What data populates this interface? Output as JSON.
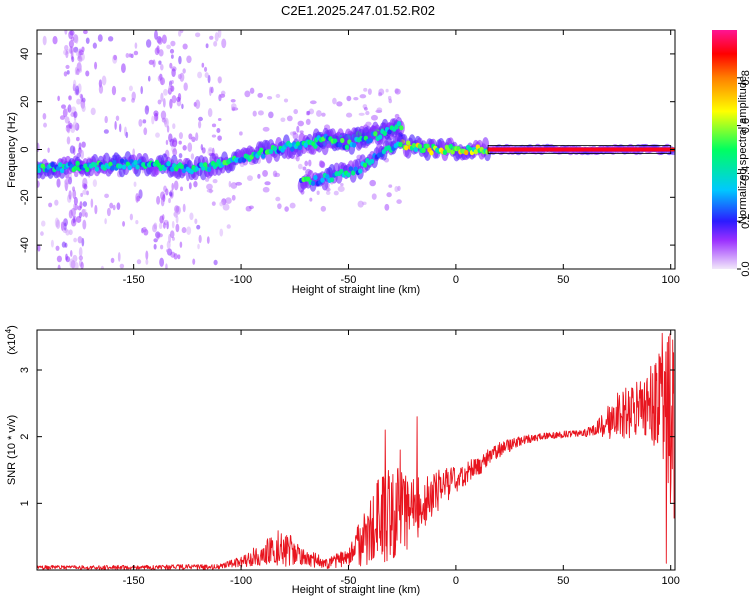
{
  "title": "C2E1.2025.247.01.52.R02",
  "chart_data": [
    {
      "type": "heatmap",
      "name": "spectrogram",
      "xlabel": "Height of straight line (km)",
      "ylabel": "Frequency (Hz)",
      "xlim": [
        -195,
        102
      ],
      "ylim": [
        -50,
        50
      ],
      "xticks": [
        -150,
        -100,
        -50,
        0,
        50,
        100
      ],
      "yticks": [
        -40,
        -20,
        0,
        20,
        40
      ],
      "colorbar": {
        "label": "Normalized spectral amplitude",
        "range": [
          0,
          1
        ],
        "ticks": [
          0.0,
          0.2,
          0.4,
          0.6,
          0.8
        ],
        "tick_labels": [
          "0.0",
          "0.2",
          "0.4",
          "0.6",
          "0.8"
        ],
        "stops": [
          {
            "v": 0.0,
            "color": "#f2e8fa"
          },
          {
            "v": 0.12,
            "color": "#9b30ff"
          },
          {
            "v": 0.2,
            "color": "#2b1bff"
          },
          {
            "v": 0.33,
            "color": "#00c8ff"
          },
          {
            "v": 0.5,
            "color": "#00ff60"
          },
          {
            "v": 0.66,
            "color": "#ffff00"
          },
          {
            "v": 0.8,
            "color": "#ff8000"
          },
          {
            "v": 0.9,
            "color": "#ff0000"
          },
          {
            "v": 1.0,
            "color": "#ff1493"
          }
        ]
      },
      "tracks": [
        {
          "name": "main-tone",
          "points": [
            [
              -195,
              -8
            ],
            [
              -150,
              -6
            ],
            [
              -120,
              -8
            ],
            [
              -100,
              -4
            ],
            [
              -80,
              1
            ],
            [
              -60,
              3
            ],
            [
              -40,
              6
            ],
            [
              -30,
              8
            ],
            [
              -27,
              10
            ],
            [
              -25,
              2
            ],
            [
              -15,
              0
            ],
            [
              0,
              0
            ],
            [
              15,
              0
            ],
            [
              60,
              0
            ],
            [
              100,
              0
            ],
            [
              102,
              0
            ]
          ]
        },
        {
          "name": "secondary-tone",
          "points": [
            [
              -72,
              -14
            ],
            [
              -60,
              -12
            ],
            [
              -45,
              -8
            ],
            [
              -35,
              -2
            ],
            [
              -27,
              3
            ],
            [
              -25,
              3
            ]
          ]
        },
        {
          "name": "tertiary-tone",
          "points": [
            [
              -65,
              5
            ],
            [
              -50,
              2
            ],
            [
              -40,
              5
            ],
            [
              -30,
              8
            ],
            [
              -25,
              10
            ]
          ]
        }
      ]
    },
    {
      "type": "line",
      "name": "snr",
      "xlabel": "Height of straight line (km)",
      "ylabel": "SNR (10 * v/v)",
      "multiplier": "(x10^4)",
      "multiplier_base": "(x10",
      "multiplier_exp": "4",
      "multiplier_close": ")",
      "xlim": [
        -195,
        102
      ],
      "ylim": [
        0,
        3.6
      ],
      "xticks": [
        -150,
        -100,
        -50,
        0,
        50,
        100
      ],
      "yticks": [
        1,
        2,
        3
      ],
      "color": "#e8141e",
      "envelope": [
        {
          "x": -195,
          "mean": 0.04,
          "amp": 0.03
        },
        {
          "x": -150,
          "mean": 0.04,
          "amp": 0.03
        },
        {
          "x": -110,
          "mean": 0.05,
          "amp": 0.04
        },
        {
          "x": -100,
          "mean": 0.12,
          "amp": 0.08
        },
        {
          "x": -90,
          "mean": 0.25,
          "amp": 0.18
        },
        {
          "x": -80,
          "mean": 0.35,
          "amp": 0.3
        },
        {
          "x": -72,
          "mean": 0.2,
          "amp": 0.15
        },
        {
          "x": -60,
          "mean": 0.1,
          "amp": 0.08
        },
        {
          "x": -50,
          "mean": 0.2,
          "amp": 0.15
        },
        {
          "x": -42,
          "mean": 0.5,
          "amp": 0.45
        },
        {
          "x": -35,
          "mean": 0.75,
          "amp": 0.7
        },
        {
          "x": -28,
          "mean": 0.9,
          "amp": 0.7
        },
        {
          "x": -22,
          "mean": 0.85,
          "amp": 0.6
        },
        {
          "x": -15,
          "mean": 1.0,
          "amp": 0.4
        },
        {
          "x": -8,
          "mean": 1.2,
          "amp": 0.3
        },
        {
          "x": 0,
          "mean": 1.35,
          "amp": 0.2
        },
        {
          "x": 10,
          "mean": 1.55,
          "amp": 0.15
        },
        {
          "x": 20,
          "mean": 1.8,
          "amp": 0.12
        },
        {
          "x": 30,
          "mean": 1.95,
          "amp": 0.08
        },
        {
          "x": 40,
          "mean": 2.0,
          "amp": 0.05
        },
        {
          "x": 55,
          "mean": 2.05,
          "amp": 0.05
        },
        {
          "x": 65,
          "mean": 2.1,
          "amp": 0.1
        },
        {
          "x": 75,
          "mean": 2.3,
          "amp": 0.35
        },
        {
          "x": 85,
          "mean": 2.4,
          "amp": 0.45
        },
        {
          "x": 92,
          "mean": 2.5,
          "amp": 0.6
        },
        {
          "x": 97,
          "mean": 2.3,
          "amp": 1.2
        },
        {
          "x": 100,
          "mean": 2.2,
          "amp": 1.4
        },
        {
          "x": 102,
          "mean": 2.0,
          "amp": 1.3
        }
      ],
      "spikes": [
        {
          "x": -33,
          "value": 2.1
        },
        {
          "x": -18,
          "value": 2.3
        },
        {
          "x": -26,
          "value": 1.8
        },
        {
          "x": 93,
          "value": 3.1
        },
        {
          "x": 96,
          "value": 3.55
        },
        {
          "x": 99,
          "value": 3.5
        },
        {
          "x": 101,
          "value": 3.45
        },
        {
          "x": 98,
          "value": 0.1
        }
      ]
    }
  ]
}
